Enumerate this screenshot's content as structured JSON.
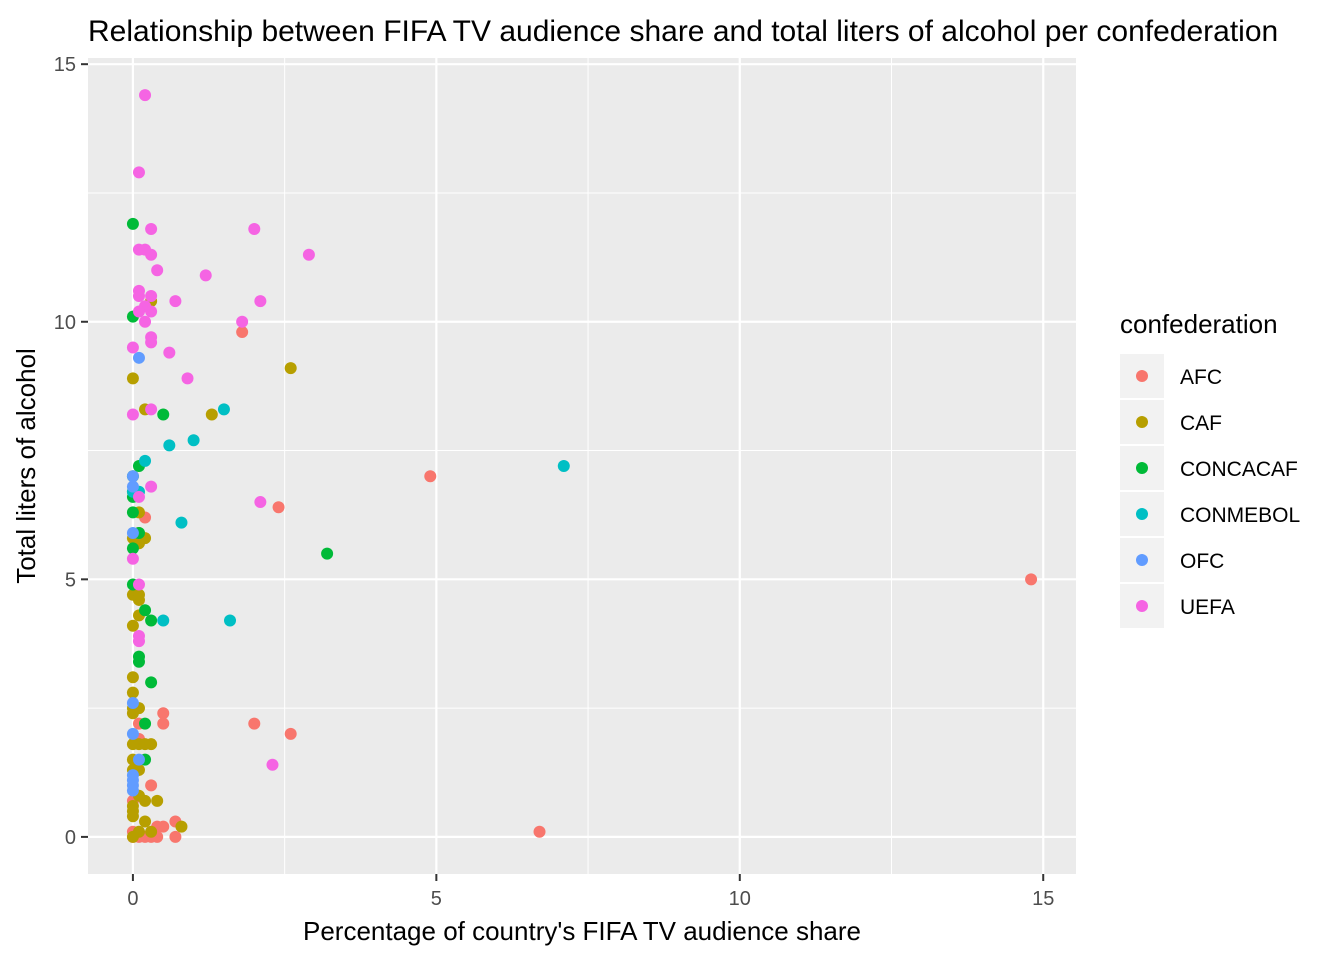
{
  "chart_data": {
    "type": "scatter",
    "title": "Relationship between FIFA TV audience share and total liters of alcohol per confederation",
    "xlabel": "Percentage of country's FIFA TV audience share",
    "ylabel": "Total liters of alcohol",
    "xlim": [
      -0.74,
      15.54
    ],
    "ylim": [
      -0.72,
      15.12
    ],
    "x_ticks": [
      0,
      5,
      10,
      15
    ],
    "y_ticks": [
      0,
      5,
      10,
      15
    ],
    "grid": true,
    "legend": {
      "title": "confederation",
      "placement": "right"
    },
    "series": [
      {
        "name": "AFC",
        "color": "#F8766D",
        "points": [
          [
            14.8,
            5.0
          ],
          [
            6.7,
            0.1
          ],
          [
            4.9,
            7.0
          ],
          [
            2.6,
            2.0
          ],
          [
            2.4,
            6.4
          ],
          [
            2.0,
            2.2
          ],
          [
            1.8,
            9.8
          ],
          [
            0.7,
            0.3
          ],
          [
            0.7,
            0.0
          ],
          [
            0.5,
            2.4
          ],
          [
            0.5,
            2.2
          ],
          [
            0.5,
            0.2
          ],
          [
            0.4,
            0.0
          ],
          [
            0.3,
            1.0
          ],
          [
            0.3,
            0.0
          ],
          [
            0.2,
            6.2
          ],
          [
            0.2,
            0.0
          ],
          [
            0.1,
            1.9
          ],
          [
            0.1,
            0.0
          ],
          [
            0.0,
            0.7
          ],
          [
            0.0,
            0.1
          ],
          [
            0.0,
            0.0
          ],
          [
            0.4,
            0.2
          ],
          [
            0.1,
            2.2
          ]
        ]
      },
      {
        "name": "CAF",
        "color": "#B79F00",
        "points": [
          [
            2.6,
            9.1
          ],
          [
            1.3,
            8.2
          ],
          [
            0.8,
            0.2
          ],
          [
            0.4,
            0.7
          ],
          [
            0.3,
            10.4
          ],
          [
            0.3,
            1.8
          ],
          [
            0.2,
            8.3
          ],
          [
            0.2,
            5.8
          ],
          [
            0.2,
            0.7
          ],
          [
            0.2,
            0.3
          ],
          [
            0.1,
            6.3
          ],
          [
            0.1,
            5.9
          ],
          [
            0.1,
            5.7
          ],
          [
            0.1,
            4.6
          ],
          [
            0.1,
            4.3
          ],
          [
            0.1,
            2.5
          ],
          [
            0.1,
            1.8
          ],
          [
            0.1,
            1.3
          ],
          [
            0.1,
            0.8
          ],
          [
            0.1,
            0.1
          ],
          [
            0.0,
            8.9
          ],
          [
            0.0,
            6.7
          ],
          [
            0.0,
            5.8
          ],
          [
            0.0,
            4.7
          ],
          [
            0.0,
            4.1
          ],
          [
            0.0,
            3.1
          ],
          [
            0.0,
            2.8
          ],
          [
            0.0,
            2.5
          ],
          [
            0.0,
            2.4
          ],
          [
            0.0,
            1.8
          ],
          [
            0.0,
            1.5
          ],
          [
            0.0,
            1.3
          ],
          [
            0.0,
            0.6
          ],
          [
            0.0,
            0.5
          ],
          [
            0.0,
            0.4
          ],
          [
            0.0,
            0.0
          ],
          [
            0.1,
            4.7
          ],
          [
            0.2,
            1.8
          ],
          [
            0.3,
            0.1
          ]
        ]
      },
      {
        "name": "CONCACAF",
        "color": "#00BA38",
        "points": [
          [
            3.2,
            5.5
          ],
          [
            0.5,
            8.2
          ],
          [
            0.3,
            4.2
          ],
          [
            0.3,
            3.0
          ],
          [
            0.2,
            4.4
          ],
          [
            0.2,
            2.2
          ],
          [
            0.2,
            1.5
          ],
          [
            0.1,
            7.2
          ],
          [
            0.1,
            5.9
          ],
          [
            0.1,
            3.5
          ],
          [
            0.1,
            3.4
          ],
          [
            0.0,
            11.9
          ],
          [
            0.0,
            10.1
          ],
          [
            0.0,
            7.0
          ],
          [
            0.0,
            6.6
          ],
          [
            0.0,
            6.3
          ],
          [
            0.0,
            5.6
          ],
          [
            0.0,
            4.9
          ]
        ]
      },
      {
        "name": "CONMEBOL",
        "color": "#00BFC4",
        "points": [
          [
            7.1,
            7.2
          ],
          [
            1.5,
            8.3
          ],
          [
            1.6,
            4.2
          ],
          [
            1.0,
            7.7
          ],
          [
            0.8,
            6.1
          ],
          [
            0.6,
            7.6
          ],
          [
            0.5,
            4.2
          ],
          [
            0.2,
            7.3
          ],
          [
            0.1,
            6.7
          ],
          [
            0.0,
            6.7
          ]
        ]
      },
      {
        "name": "OFC",
        "color": "#619CFF",
        "points": [
          [
            0.1,
            9.3
          ],
          [
            0.0,
            7.0
          ],
          [
            0.0,
            6.8
          ],
          [
            0.0,
            5.9
          ],
          [
            0.0,
            2.6
          ],
          [
            0.0,
            2.0
          ],
          [
            0.0,
            1.2
          ],
          [
            0.0,
            1.1
          ],
          [
            0.0,
            1.0
          ],
          [
            0.0,
            0.9
          ],
          [
            0.1,
            1.5
          ]
        ]
      },
      {
        "name": "UEFA",
        "color": "#F564E3",
        "points": [
          [
            0.2,
            14.4
          ],
          [
            0.1,
            12.9
          ],
          [
            2.0,
            11.8
          ],
          [
            0.3,
            11.8
          ],
          [
            2.9,
            11.3
          ],
          [
            0.1,
            11.4
          ],
          [
            0.2,
            11.4
          ],
          [
            0.3,
            11.3
          ],
          [
            0.4,
            11.0
          ],
          [
            1.2,
            10.9
          ],
          [
            0.1,
            10.6
          ],
          [
            0.1,
            10.5
          ],
          [
            0.3,
            10.5
          ],
          [
            0.7,
            10.4
          ],
          [
            2.1,
            10.4
          ],
          [
            0.2,
            10.3
          ],
          [
            0.1,
            10.2
          ],
          [
            0.3,
            10.2
          ],
          [
            0.2,
            10.0
          ],
          [
            1.8,
            10.0
          ],
          [
            0.3,
            9.7
          ],
          [
            0.3,
            9.6
          ],
          [
            0.0,
            9.5
          ],
          [
            0.6,
            9.4
          ],
          [
            0.9,
            8.9
          ],
          [
            0.3,
            8.3
          ],
          [
            0.0,
            8.2
          ],
          [
            0.3,
            6.8
          ],
          [
            2.1,
            6.5
          ],
          [
            0.1,
            4.9
          ],
          [
            0.0,
            5.4
          ],
          [
            0.1,
            3.9
          ],
          [
            0.1,
            3.8
          ],
          [
            2.3,
            1.4
          ],
          [
            0.1,
            6.6
          ]
        ]
      }
    ]
  }
}
